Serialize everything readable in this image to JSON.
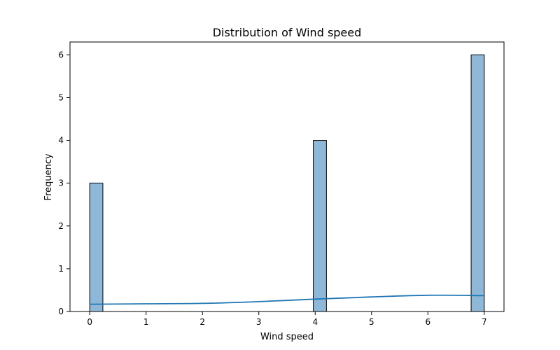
{
  "chart_data": {
    "type": "bar",
    "title": "Distribution of Wind speed",
    "xlabel": "Wind speed",
    "ylabel": "Frequency",
    "xlim": [
      -0.35,
      7.35
    ],
    "ylim": [
      0,
      6.3
    ],
    "xticks": [
      0,
      1,
      2,
      3,
      4,
      5,
      6,
      7
    ],
    "yticks": [
      0,
      1,
      2,
      3,
      4,
      5,
      6
    ],
    "grid": false,
    "bins": [
      {
        "x0": 0.0,
        "x1": 0.233,
        "count": 3
      },
      {
        "x0": 3.967,
        "x1": 4.2,
        "count": 4
      },
      {
        "x0": 6.767,
        "x1": 7.0,
        "count": 6
      }
    ],
    "kde": {
      "x": [
        0,
        1,
        2,
        3,
        4,
        5,
        6,
        7
      ],
      "y": [
        0.17,
        0.18,
        0.19,
        0.23,
        0.29,
        0.34,
        0.38,
        0.37
      ]
    },
    "colors": {
      "bar_fill": "#8fb8d8",
      "bar_edge": "#000000",
      "kde_line": "#1f77b4"
    }
  }
}
